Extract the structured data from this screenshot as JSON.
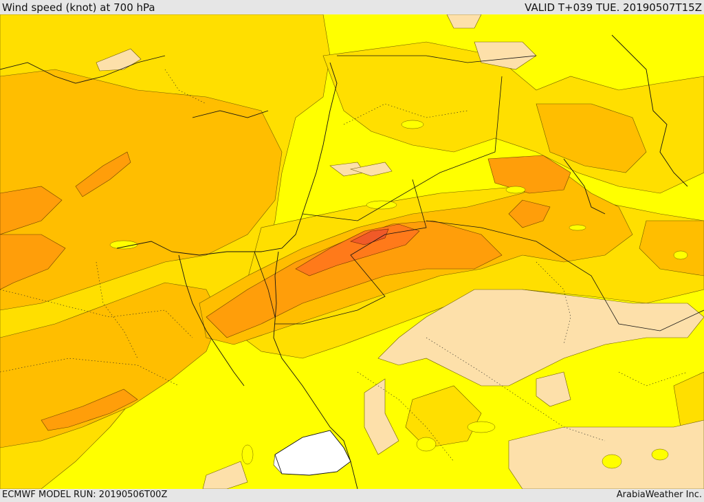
{
  "header": {
    "title": "Wind speed (knot) at 700 hPa",
    "valid": "VALID T+039 TUE. 20190507T15Z"
  },
  "footer": {
    "model_run": "ECMWF MODEL RUN: 20190506T00Z",
    "credit": "ArabiaWeather Inc."
  },
  "colors": {
    "level_lowest": "#ffffff",
    "level_low": "#fde0aa",
    "level_1": "#ffff00",
    "level_2": "#ffdf00",
    "level_3": "#ffbe00",
    "level_4": "#ff9e0a",
    "level_5": "#ff7a1a",
    "level_6": "#f05a28",
    "frame_background": "#e6e6e6"
  }
}
